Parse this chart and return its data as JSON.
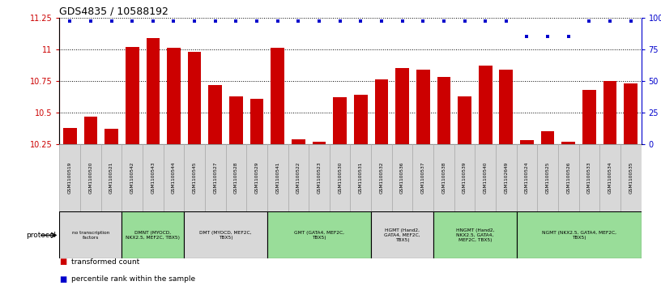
{
  "title": "GDS4835 / 10588192",
  "samples": [
    "GSM1100519",
    "GSM1100520",
    "GSM1100521",
    "GSM1100542",
    "GSM1100543",
    "GSM1100544",
    "GSM1100545",
    "GSM1100527",
    "GSM1100528",
    "GSM1100529",
    "GSM1100541",
    "GSM1100522",
    "GSM1100523",
    "GSM1100530",
    "GSM1100531",
    "GSM1100532",
    "GSM1100536",
    "GSM1100537",
    "GSM1100538",
    "GSM1100539",
    "GSM1100540",
    "GSM1102649",
    "GSM1100524",
    "GSM1100525",
    "GSM1100526",
    "GSM1100533",
    "GSM1100534",
    "GSM1100535"
  ],
  "bar_values": [
    10.38,
    10.47,
    10.37,
    11.02,
    11.09,
    11.01,
    10.98,
    10.72,
    10.63,
    10.61,
    11.01,
    10.29,
    10.27,
    10.62,
    10.64,
    10.76,
    10.85,
    10.84,
    10.78,
    10.63,
    10.87,
    10.84,
    10.28,
    10.35,
    10.27,
    10.68,
    10.75,
    10.73
  ],
  "percentile_values": [
    97,
    97,
    97,
    97,
    97,
    97,
    97,
    97,
    97,
    97,
    97,
    97,
    97,
    97,
    97,
    97,
    97,
    97,
    97,
    97,
    97,
    97,
    85,
    85,
    85,
    97,
    97,
    97
  ],
  "ymin": 10.25,
  "ymax": 11.25,
  "yticks": [
    10.25,
    10.5,
    10.75,
    11.0,
    11.25
  ],
  "ytick_labels": [
    "10.25",
    "10.5",
    "10.75",
    "11",
    "11.25"
  ],
  "right_yticks": [
    0,
    25,
    50,
    75,
    100
  ],
  "right_ytick_labels": [
    "0",
    "25",
    "50",
    "75",
    "100%"
  ],
  "bar_color": "#cc0000",
  "dot_color": "#0000cc",
  "bar_baseline": 10.25,
  "protocol_groups": [
    {
      "label": "no transcription\nfactors",
      "start": 0,
      "end": 3,
      "color": "#d8d8d8"
    },
    {
      "label": "DMNT (MYOCD,\nNKX2.5, MEF2C, TBX5)",
      "start": 3,
      "end": 6,
      "color": "#99dd99"
    },
    {
      "label": "DMT (MYOCD, MEF2C,\nTBX5)",
      "start": 6,
      "end": 10,
      "color": "#d8d8d8"
    },
    {
      "label": "GMT (GATA4, MEF2C,\nTBX5)",
      "start": 10,
      "end": 15,
      "color": "#99dd99"
    },
    {
      "label": "HGMT (Hand2,\nGATA4, MEF2C,\nTBX5)",
      "start": 15,
      "end": 18,
      "color": "#d8d8d8"
    },
    {
      "label": "HNGMT (Hand2,\nNKX2.5, GATA4,\nMEF2C, TBX5)",
      "start": 18,
      "end": 22,
      "color": "#99dd99"
    },
    {
      "label": "NGMT (NKX2.5, GATA4, MEF2C,\nTBX5)",
      "start": 22,
      "end": 28,
      "color": "#99dd99"
    }
  ]
}
